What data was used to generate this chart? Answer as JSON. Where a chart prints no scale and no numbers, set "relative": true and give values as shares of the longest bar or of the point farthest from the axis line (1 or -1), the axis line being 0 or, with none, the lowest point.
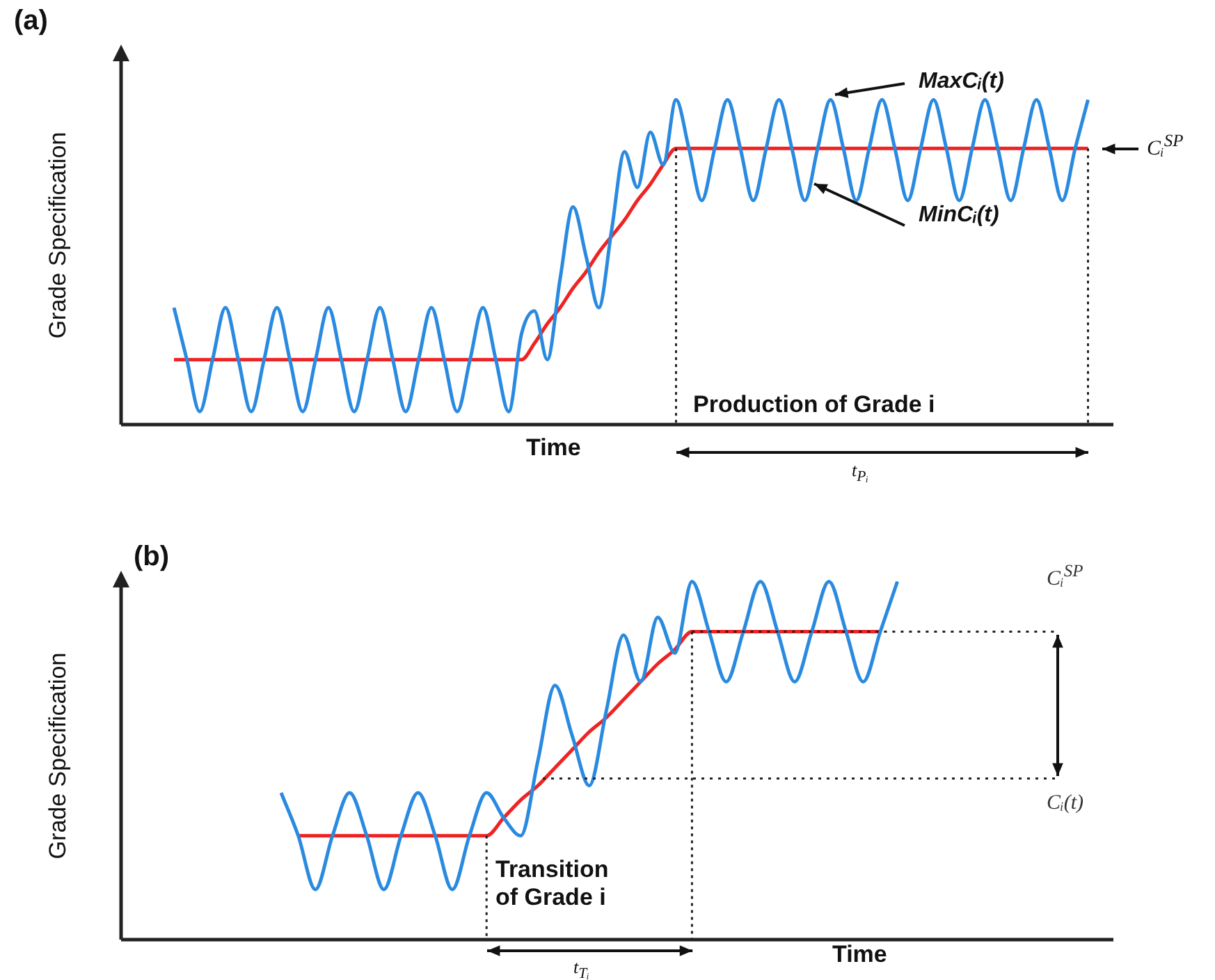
{
  "chart_data": [
    {
      "type": "line",
      "title": "(a)",
      "xlabel": "Time",
      "ylabel": "Grade Specification",
      "relative": true,
      "marker": "none",
      "categories": [
        null,
        null,
        null,
        null,
        null,
        null,
        null,
        null,
        null,
        null,
        null,
        null,
        null,
        null,
        null,
        null,
        null,
        null,
        null,
        null,
        null,
        null,
        null,
        null,
        null,
        null,
        null,
        null,
        null,
        null,
        null,
        null,
        null,
        null,
        null,
        null,
        null,
        null,
        null,
        null,
        null,
        null,
        null,
        null,
        null,
        null,
        null,
        null,
        null,
        null,
        null,
        null,
        null,
        null,
        null,
        null,
        null,
        null,
        null,
        null,
        null,
        null,
        null,
        null,
        null,
        null,
        null,
        null,
        null,
        null,
        null,
        null
      ],
      "series": [
        {
          "color": "#2a8ae0",
          "values": [
            0.36,
            0.2,
            0.04,
            0.2,
            0.36,
            0.2,
            0.04,
            0.2,
            0.36,
            0.2,
            0.04,
            0.2,
            0.36,
            0.2,
            0.04,
            0.2,
            0.36,
            0.2,
            0.04,
            0.2,
            0.36,
            0.2,
            0.04,
            0.2,
            0.36,
            0.2,
            0.04,
            0.28,
            0.35,
            0.2,
            0.45,
            0.67,
            0.52,
            0.36,
            0.6,
            0.84,
            0.73,
            0.9,
            0.8,
            1.0,
            0.85,
            0.69,
            0.85,
            1.0,
            0.85,
            0.69,
            0.85,
            1.0,
            0.85,
            0.69,
            0.85,
            1.0,
            0.85,
            0.69,
            0.85,
            1.0,
            0.85,
            0.69,
            0.85,
            1.0,
            0.85,
            0.69,
            0.85,
            1.0,
            0.85,
            0.69,
            0.85,
            1.0,
            0.85,
            0.69,
            0.85,
            1.0
          ]
        },
        {
          "color": "#ee2424",
          "values": [
            0.2,
            0.2,
            0.2,
            0.2,
            0.2,
            0.2,
            0.2,
            0.2,
            0.2,
            0.2,
            0.2,
            0.2,
            0.2,
            0.2,
            0.2,
            0.2,
            0.2,
            0.2,
            0.2,
            0.2,
            0.2,
            0.2,
            0.2,
            0.2,
            0.2,
            0.2,
            0.2,
            0.2,
            0.25,
            0.31,
            0.36,
            0.42,
            0.47,
            0.53,
            0.58,
            0.63,
            0.69,
            0.74,
            0.8,
            0.85,
            0.85,
            0.85,
            0.85,
            0.85,
            0.85,
            0.85,
            0.85,
            0.85,
            0.85,
            0.85,
            0.85,
            0.85,
            0.85,
            0.85,
            0.85,
            0.85,
            0.85,
            0.85,
            0.85,
            0.85,
            0.85,
            0.85,
            0.85,
            0.85,
            0.85,
            0.85,
            0.85,
            0.85,
            0.85,
            0.85,
            0.85,
            0.85
          ]
        }
      ],
      "annotations": [
        "MaxCᵢ(t)",
        "MinCᵢ(t)",
        "Cᵢ$^{SP}$",
        "Production of Grade i",
        "t$_{Pᵢ}$"
      ]
    },
    {
      "type": "line",
      "title": "(b)",
      "xlabel": "Time",
      "ylabel": "Grade Specification",
      "relative": true,
      "marker": "none",
      "categories": [
        null,
        null,
        null,
        null,
        null,
        null,
        null,
        null,
        null,
        null,
        null,
        null,
        null,
        null,
        null,
        null,
        null,
        null,
        null,
        null,
        null,
        null,
        null,
        null,
        null,
        null,
        null,
        null,
        null,
        null,
        null,
        null,
        null,
        null,
        null,
        null,
        null
      ],
      "series": [
        {
          "color": "#2a8ae0",
          "values": [
            0.41,
            0.29,
            0.14,
            0.29,
            0.41,
            0.29,
            0.14,
            0.29,
            0.41,
            0.29,
            0.14,
            0.29,
            0.41,
            0.34,
            0.29,
            0.5,
            0.71,
            0.57,
            0.43,
            0.64,
            0.85,
            0.72,
            0.9,
            0.8,
            1.0,
            0.86,
            0.72,
            0.86,
            1.0,
            0.86,
            0.72,
            0.86,
            1.0,
            0.86,
            0.72,
            0.86,
            1.0
          ]
        },
        {
          "color": "#ee2424",
          "values": [
            null,
            0.29,
            0.29,
            0.29,
            0.29,
            0.29,
            0.29,
            0.29,
            0.29,
            0.29,
            0.29,
            0.29,
            0.29,
            0.34,
            0.39,
            0.43,
            0.48,
            0.53,
            0.58,
            0.62,
            0.67,
            0.72,
            0.77,
            0.81,
            0.86,
            0.86,
            0.86,
            0.86,
            0.86,
            0.86,
            0.86,
            0.86,
            0.86,
            0.86,
            0.86,
            0.86,
            null
          ]
        }
      ],
      "ref_lines": [
        {
          "axis": "y",
          "value": 0.86,
          "label": "Cᵢ$^{SP}$",
          "line_style": "dotted"
        },
        {
          "axis": "y",
          "value": 0.45,
          "label": "Cᵢ(t)",
          "line_style": "dotted"
        }
      ],
      "annotations": [
        "Transition of Grade i",
        "t$_{Tᵢ}$"
      ]
    }
  ]
}
